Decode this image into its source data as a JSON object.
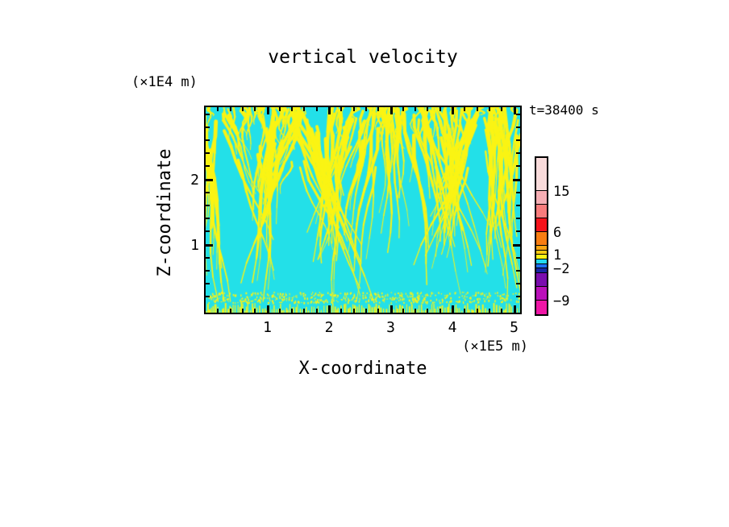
{
  "title": "vertical velocity",
  "time_label": "t=38400 s",
  "axes": {
    "x": {
      "label": "X-coordinate",
      "unit": "(×1E5 m)",
      "tick_labels": [
        "1",
        "2",
        "3",
        "4",
        "5"
      ]
    },
    "z": {
      "label": "Z-coordinate",
      "unit": "(×1E4 m)",
      "tick_labels": [
        "1",
        "2"
      ]
    }
  },
  "colorbar": {
    "segments": [
      {
        "color": "#F9DBDB",
        "range": "> 15",
        "h": 41
      },
      {
        "color": "#F6AEB4",
        "range": "12 to 15",
        "h": 17
      },
      {
        "color": "#F87C7C",
        "range": "9 to 12",
        "h": 17
      },
      {
        "color": "#F6131B",
        "range": "6 to 9",
        "h": 17
      },
      {
        "color": "#F97D11",
        "range": "3 to 6",
        "h": 17
      },
      {
        "color": "#FBA511",
        "range": "2 to 3",
        "h": 6
      },
      {
        "color": "#FBC911",
        "range": "1 to 2",
        "h": 5
      },
      {
        "color": "#FAF414",
        "range": "0 to 1",
        "h": 6
      },
      {
        "color": "#22D9EE",
        "range": "-1 to 0",
        "h": 6
      },
      {
        "color": "#1C6FF6",
        "range": "-2 to -1",
        "h": 5
      },
      {
        "color": "#1727A3",
        "range": "-3 to -2",
        "h": 6
      },
      {
        "color": "#7A0CAE",
        "range": "-6 to -3",
        "h": 17
      },
      {
        "color": "#BA10BA",
        "range": "-9 to -6",
        "h": 17
      },
      {
        "color": "#EF16A6",
        "range": "< -9",
        "h": 17
      }
    ],
    "labels": [
      {
        "text": "15",
        "after_segment": 0
      },
      {
        "text": "6",
        "after_segment": 3
      },
      {
        "text": "1",
        "after_segment": 6
      },
      {
        "text": "−2",
        "after_segment": 9
      },
      {
        "text": "−9",
        "after_segment": 12
      }
    ]
  },
  "chart_data": {
    "type": "heatmap",
    "title": "vertical velocity",
    "xlabel": "X-coordinate",
    "ylabel": "Z-coordinate",
    "x_unit": "(×1E5 m)",
    "z_unit": "(×1E4 m)",
    "x_axis_ticks": [
      1,
      2,
      3,
      4,
      5
    ],
    "z_axis_ticks": [
      1,
      2
    ],
    "x_range": [
      0,
      5.1
    ],
    "z_range": [
      0,
      3.2
    ],
    "time_annotation_s": 38400,
    "contour_levels": [
      -9,
      -6,
      -3,
      -2,
      -1,
      0,
      1,
      2,
      3,
      6,
      9,
      12,
      15
    ],
    "labeled_levels": [
      15,
      6,
      1,
      -2,
      -9
    ],
    "band_colors_top_to_bottom": [
      "#F9DBDB",
      "#F6AEB4",
      "#F87C7C",
      "#F6131B",
      "#F97D11",
      "#FBA511",
      "#FBC911",
      "#FAF414",
      "#22D9EE",
      "#1C6FF6",
      "#1727A3",
      "#7A0CAE",
      "#BA10BA",
      "#EF16A6"
    ],
    "field_summary": "Field values lie almost entirely between -1 and 1: cyan background (-1..0) laced with yellow (0..1) wave filaments; streaks fan downward in V-shaped clusters, dense near the top and right, with a speckled high-frequency band along the bottom boundary.",
    "pattern": {
      "seed": 7,
      "background_color": "#23E0E8",
      "streak_color": "#FAF414",
      "top_streaks": 70,
      "clusters": [
        {
          "cx": 0.015,
          "spread": 0.03,
          "count": 14,
          "len": [
            0.35,
            0.95
          ],
          "converge": 0.1
        },
        {
          "cx": 0.17,
          "spread": 0.14,
          "count": 26,
          "len": [
            0.15,
            0.55
          ],
          "converge": 0.5
        },
        {
          "cx": 0.21,
          "spread": 0.035,
          "count": 9,
          "len": [
            0.55,
            0.9
          ],
          "converge": 0.15
        },
        {
          "cx": 0.4,
          "spread": 0.13,
          "count": 30,
          "len": [
            0.25,
            0.8
          ],
          "converge": 0.55
        },
        {
          "cx": 0.6,
          "spread": 0.14,
          "count": 36,
          "len": [
            0.25,
            0.75
          ],
          "converge": -0.35
        },
        {
          "cx": 0.79,
          "spread": 0.1,
          "count": 28,
          "len": [
            0.3,
            0.8
          ],
          "converge": 0.5
        },
        {
          "cx": 0.945,
          "spread": 0.06,
          "count": 24,
          "len": [
            0.35,
            0.95
          ],
          "converge": 0.15
        }
      ],
      "bottom_band": {
        "dash_height_max": 10,
        "speckle_count": 520
      }
    }
  }
}
